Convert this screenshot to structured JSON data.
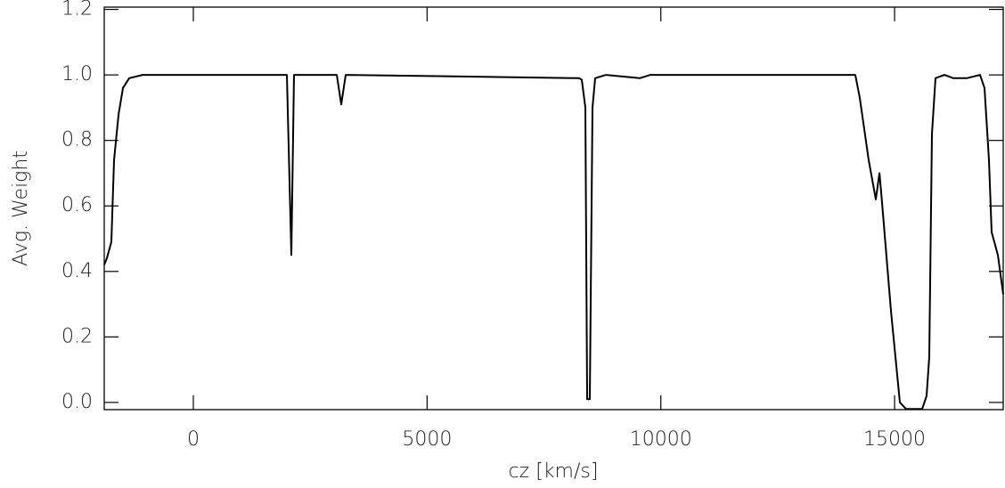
{
  "chart_data": {
    "type": "line",
    "x_label": "cz [km/s]",
    "y_label": "Avg. Weight",
    "x": [
      -1906,
      -1850,
      -1753,
      -1696,
      -1600,
      -1505,
      -1372,
      -1086,
      -324,
      1963,
      2001,
      2096,
      2154,
      3068,
      3164,
      3259,
      8252,
      8310,
      8386,
      8424,
      8481,
      8538,
      8596,
      8825,
      9550,
      9777,
      14161,
      14256,
      14447,
      14599,
      14676,
      14733,
      14923,
      15114,
      15247,
      15590,
      15685,
      15743,
      15800,
      15876,
      16066,
      16257,
      16543,
      16829,
      16924,
      17019,
      17077,
      17210,
      17324
    ],
    "series": [
      {
        "color": "#000000",
        "values": [
          0.42,
          0.44,
          0.49,
          0.74,
          0.88,
          0.96,
          0.99,
          1.0,
          1.0,
          1.0,
          1.0,
          0.45,
          1.0,
          1.0,
          0.91,
          1.0,
          0.99,
          0.985,
          0.9,
          0.01,
          0.01,
          0.9,
          0.99,
          1.0,
          0.99,
          1.0,
          1.0,
          0.93,
          0.74,
          0.62,
          0.7,
          0.61,
          0.28,
          0.0,
          -0.02,
          -0.02,
          0.02,
          0.14,
          0.82,
          0.99,
          1.0,
          0.99,
          0.99,
          1.0,
          0.96,
          0.74,
          0.52,
          0.45,
          0.33
        ]
      }
    ],
    "xlim": [
      -1906,
      17324
    ],
    "ylim": [
      -0.022,
      1.207
    ],
    "xticks": [
      0,
      5000,
      10000,
      15000
    ],
    "yticks": [
      {
        "value": 0,
        "label": "0.0"
      },
      {
        "value": 0.2,
        "label": "0.2"
      },
      {
        "value": 0.4,
        "label": "0.4"
      },
      {
        "value": 0.6,
        "label": "0.6"
      },
      {
        "value": 0.8,
        "label": "0.8"
      },
      {
        "value": 1,
        "label": "1.0"
      },
      {
        "value": 1.2,
        "label": "1.2"
      }
    ]
  }
}
